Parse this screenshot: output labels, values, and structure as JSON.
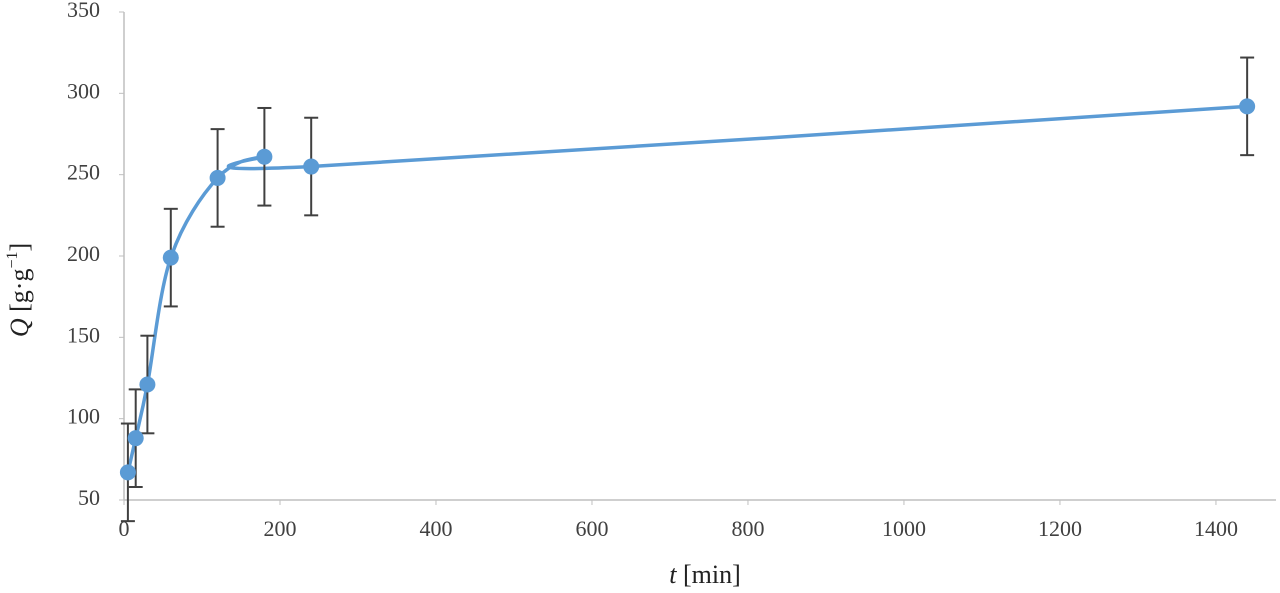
{
  "chart_data": {
    "type": "scatter-line",
    "xlabel": {
      "symbol": "t",
      "unit": "[min]"
    },
    "ylabel": {
      "symbol": "Q",
      "unit": "[g·g",
      "exponent": "−1",
      "close": "]"
    },
    "x": [
      5,
      15,
      30,
      60,
      120,
      180,
      240,
      1440
    ],
    "values": [
      67,
      88,
      121,
      199,
      248,
      261,
      255,
      292
    ],
    "errors": [
      30,
      30,
      30,
      30,
      30,
      30,
      30,
      30
    ],
    "color": "#5b9bd5",
    "error_color": "#404040",
    "smooth": true,
    "xlim": [
      0,
      1477
    ],
    "xticks": [
      0,
      200,
      400,
      600,
      800,
      1000,
      1200,
      1400
    ],
    "ylim": [
      50,
      350
    ],
    "yticks": [
      50,
      100,
      150,
      200,
      250,
      300,
      350
    ]
  }
}
